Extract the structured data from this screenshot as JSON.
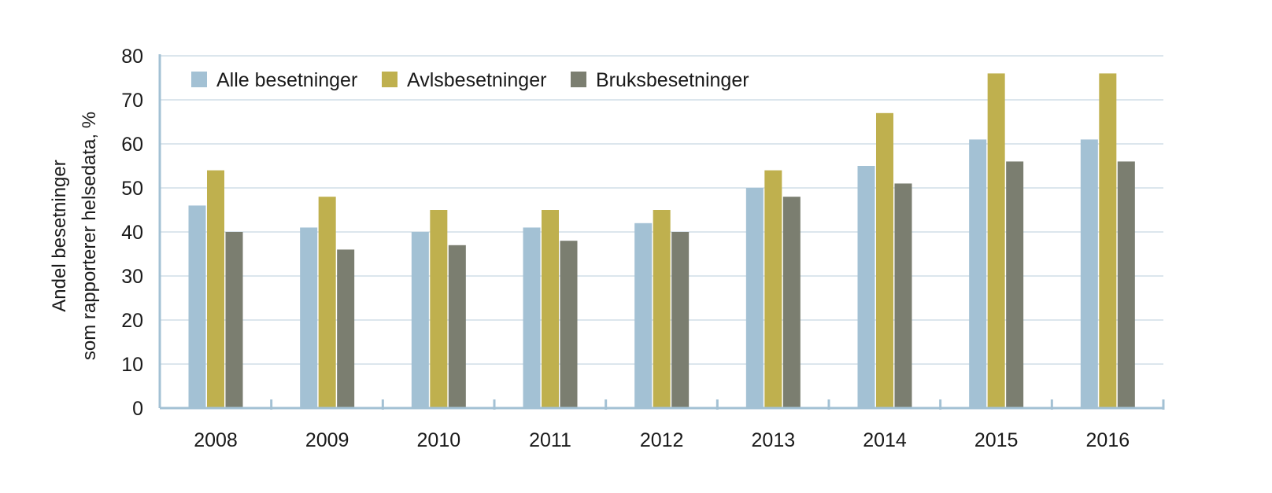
{
  "chart_data": {
    "type": "bar",
    "categories": [
      "2008",
      "2009",
      "2010",
      "2011",
      "2012",
      "2013",
      "2014",
      "2015",
      "2016"
    ],
    "series": [
      {
        "name": "Alle besetninger",
        "values": [
          46,
          41,
          40,
          41,
          42,
          50,
          55,
          61,
          61
        ],
        "color": "#a3c1d4"
      },
      {
        "name": "Avlsbesetninger",
        "values": [
          54,
          48,
          45,
          45,
          45,
          54,
          67,
          76,
          76
        ],
        "color": "#bfb04e"
      },
      {
        "name": "Bruksbesetninger",
        "values": [
          40,
          36,
          37,
          38,
          40,
          48,
          51,
          56,
          56
        ],
        "color": "#7b7e70"
      }
    ],
    "ylabel_lines": [
      "Andel besetninger",
      "som rapporterer helsedata, %"
    ],
    "ylim": [
      0,
      80
    ],
    "yticks": [
      "0",
      "10",
      "20",
      "30",
      "40",
      "50",
      "60",
      "70",
      "80"
    ],
    "grid": true,
    "legend_position": "top-left",
    "axis_color": "#a3c1d4",
    "grid_color": "#c8d8e2"
  }
}
